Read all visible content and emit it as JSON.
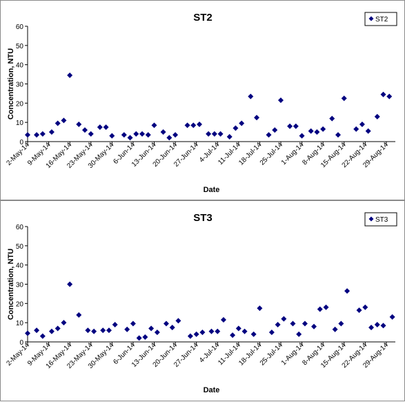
{
  "chart_data": [
    {
      "type": "scatter",
      "title": "ST2",
      "xlabel": "Date",
      "ylabel": "Concentration, NTU",
      "ylim": [
        0,
        60
      ],
      "yticks": [
        0,
        10,
        20,
        30,
        40,
        50,
        60
      ],
      "xticks": [
        "2-May-14",
        "9-May-14",
        "16-May-14",
        "23-May-14",
        "30-May-14",
        "6-Jun-14",
        "13-Jun-14",
        "20-Jun-14",
        "27-Jun-14",
        "4-Jul-14",
        "11-Jul-14",
        "18-Jul-14",
        "25-Jul-14",
        "1-Aug-14",
        "8-Aug-14",
        "15-Aug-14",
        "22-Aug-14",
        "29-Aug-14"
      ],
      "xlim": [
        "2014-05-02",
        "2014-09-01"
      ],
      "legend": "top-right",
      "grid": false,
      "marker_color": "#000080",
      "series": [
        {
          "name": "ST2",
          "points": [
            [
              "2014-05-02",
              3.5
            ],
            [
              "2014-05-05",
              3.5
            ],
            [
              "2014-05-07",
              4
            ],
            [
              "2014-05-10",
              5
            ],
            [
              "2014-05-12",
              9.5
            ],
            [
              "2014-05-14",
              11
            ],
            [
              "2014-05-16",
              34.5
            ],
            [
              "2014-05-19",
              9
            ],
            [
              "2014-05-21",
              6
            ],
            [
              "2014-05-23",
              4
            ],
            [
              "2014-05-26",
              7.5
            ],
            [
              "2014-05-28",
              7.5
            ],
            [
              "2014-05-30",
              3
            ],
            [
              "2014-06-03",
              3.5
            ],
            [
              "2014-06-05",
              2
            ],
            [
              "2014-06-07",
              4
            ],
            [
              "2014-06-09",
              4
            ],
            [
              "2014-06-11",
              3.5
            ],
            [
              "2014-06-13",
              8.5
            ],
            [
              "2014-06-16",
              5
            ],
            [
              "2014-06-18",
              2
            ],
            [
              "2014-06-20",
              3.5
            ],
            [
              "2014-06-24",
              8.5
            ],
            [
              "2014-06-26",
              8.5
            ],
            [
              "2014-06-28",
              9
            ],
            [
              "2014-07-01",
              4
            ],
            [
              "2014-07-03",
              4
            ],
            [
              "2014-07-05",
              4
            ],
            [
              "2014-07-08",
              2.5
            ],
            [
              "2014-07-10",
              7
            ],
            [
              "2014-07-12",
              9.5
            ],
            [
              "2014-07-15",
              23.5
            ],
            [
              "2014-07-17",
              12.5
            ],
            [
              "2014-07-21",
              3.5
            ],
            [
              "2014-07-23",
              6
            ],
            [
              "2014-07-25",
              21.5
            ],
            [
              "2014-07-28",
              8
            ],
            [
              "2014-07-30",
              8
            ],
            [
              "2014-08-01",
              3
            ],
            [
              "2014-08-04",
              5.5
            ],
            [
              "2014-08-06",
              5
            ],
            [
              "2014-08-08",
              6.5
            ],
            [
              "2014-08-11",
              12
            ],
            [
              "2014-08-13",
              3.5
            ],
            [
              "2014-08-15",
              22.5
            ],
            [
              "2014-08-19",
              6.5
            ],
            [
              "2014-08-21",
              9
            ],
            [
              "2014-08-23",
              5.5
            ],
            [
              "2014-08-26",
              13
            ],
            [
              "2014-08-28",
              24.5
            ],
            [
              "2014-08-30",
              23.5
            ]
          ]
        }
      ]
    },
    {
      "type": "scatter",
      "title": "ST3",
      "xlabel": "Date",
      "ylabel": "Concentration, NTU",
      "ylim": [
        0,
        60
      ],
      "yticks": [
        0,
        10,
        20,
        30,
        40,
        50,
        60
      ],
      "xticks": [
        "2-May-14",
        "9-May-14",
        "16-May-14",
        "23-May-14",
        "30-May-14",
        "6-Jun-14",
        "13-Jun-14",
        "20-Jun-14",
        "27-Jun-14",
        "4-Jul-14",
        "11-Jul-14",
        "18-Jul-14",
        "25-Jul-14",
        "1-Aug-14",
        "8-Aug-14",
        "15-Aug-14",
        "22-Aug-14",
        "29-Aug-14"
      ],
      "xlim": [
        "2014-05-02",
        "2014-09-01"
      ],
      "legend": "top-right",
      "grid": false,
      "marker_color": "#000080",
      "series": [
        {
          "name": "ST3",
          "points": [
            [
              "2014-05-02",
              4.5
            ],
            [
              "2014-05-05",
              6
            ],
            [
              "2014-05-07",
              3
            ],
            [
              "2014-05-10",
              5.5
            ],
            [
              "2014-05-12",
              7
            ],
            [
              "2014-05-14",
              10
            ],
            [
              "2014-05-16",
              30
            ],
            [
              "2014-05-19",
              14
            ],
            [
              "2014-05-22",
              6
            ],
            [
              "2014-05-24",
              5.5
            ],
            [
              "2014-05-27",
              6
            ],
            [
              "2014-05-29",
              6
            ],
            [
              "2014-05-31",
              9
            ],
            [
              "2014-06-04",
              6.5
            ],
            [
              "2014-06-06",
              9.5
            ],
            [
              "2014-06-08",
              2
            ],
            [
              "2014-06-10",
              2.5
            ],
            [
              "2014-06-12",
              7
            ],
            [
              "2014-06-14",
              5
            ],
            [
              "2014-06-17",
              9.5
            ],
            [
              "2014-06-19",
              7.5
            ],
            [
              "2014-06-21",
              11
            ],
            [
              "2014-06-25",
              3
            ],
            [
              "2014-06-27",
              4
            ],
            [
              "2014-06-29",
              5
            ],
            [
              "2014-07-02",
              5.5
            ],
            [
              "2014-07-04",
              5.5
            ],
            [
              "2014-07-06",
              11.5
            ],
            [
              "2014-07-09",
              3.5
            ],
            [
              "2014-07-11",
              7
            ],
            [
              "2014-07-13",
              5.5
            ],
            [
              "2014-07-16",
              4
            ],
            [
              "2014-07-18",
              17.5
            ],
            [
              "2014-07-22",
              5
            ],
            [
              "2014-07-24",
              9
            ],
            [
              "2014-07-26",
              12
            ],
            [
              "2014-07-29",
              9.5
            ],
            [
              "2014-07-31",
              4
            ],
            [
              "2014-08-02",
              9.5
            ],
            [
              "2014-08-05",
              8
            ],
            [
              "2014-08-07",
              17
            ],
            [
              "2014-08-09",
              18
            ],
            [
              "2014-08-12",
              6.5
            ],
            [
              "2014-08-14",
              9.5
            ],
            [
              "2014-08-16",
              26.5
            ],
            [
              "2014-08-20",
              16.5
            ],
            [
              "2014-08-22",
              18
            ],
            [
              "2014-08-24",
              7.5
            ],
            [
              "2014-08-26",
              9
            ],
            [
              "2014-08-28",
              8.5
            ],
            [
              "2014-08-31",
              13
            ]
          ]
        }
      ]
    }
  ]
}
